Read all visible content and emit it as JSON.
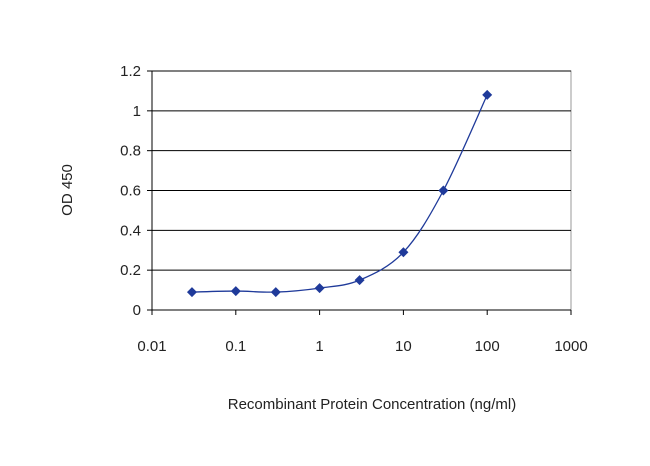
{
  "chart_data": {
    "type": "line",
    "xlabel": "Recombinant Protein Concentration (ng/ml)",
    "ylabel": "OD 450",
    "xscale": "log",
    "xlim": [
      0.01,
      1000
    ],
    "ylim": [
      0,
      1.2
    ],
    "x_ticks": [
      "0.01",
      "0.1",
      "1",
      "10",
      "100",
      "1000"
    ],
    "y_ticks": [
      "0",
      "0.2",
      "0.4",
      "0.6",
      "0.8",
      "1",
      "1.2"
    ],
    "grid": "horizontal",
    "colors": {
      "series": "#1f3a9a",
      "grid": "#000000",
      "plot_border": "#999999"
    },
    "series": [
      {
        "x": [
          0.03,
          0.1,
          0.3,
          1,
          3,
          10,
          30,
          100
        ],
        "y": [
          0.09,
          0.095,
          0.09,
          0.11,
          0.15,
          0.29,
          0.6,
          1.08
        ]
      }
    ]
  }
}
